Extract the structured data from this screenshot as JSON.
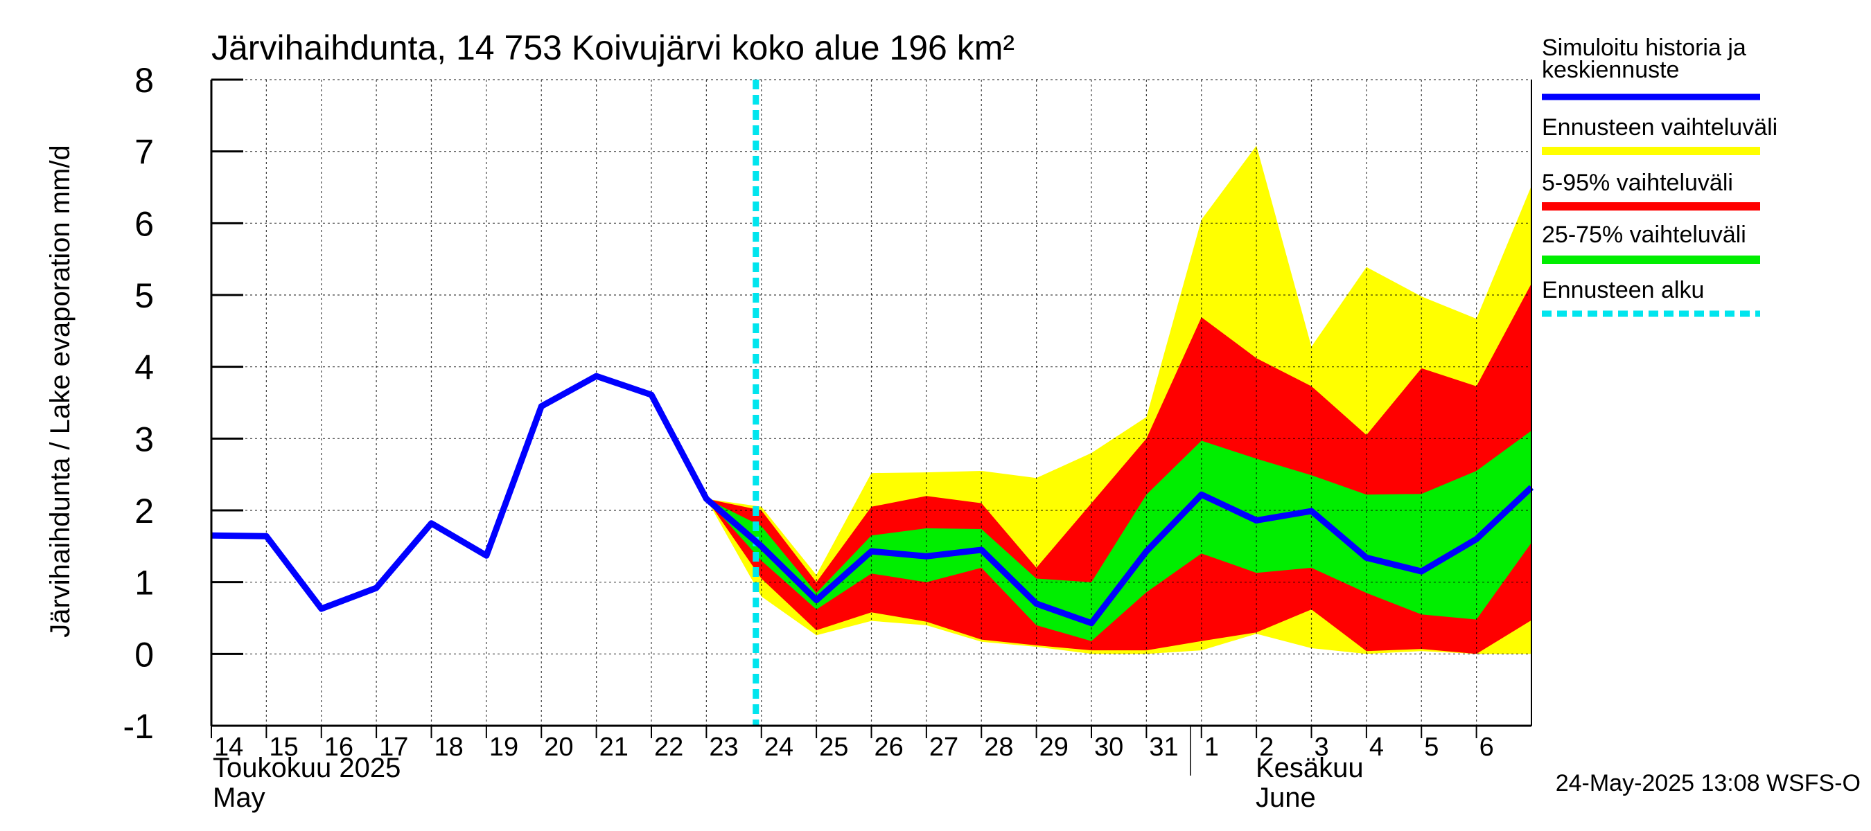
{
  "chart_data": {
    "type": "area",
    "title": "Järvihaihdunta, 14 753 Koivujärvi koko alue 196 km²",
    "ylabel": "Järvihaihdunta / Lake evaporation   mm/d",
    "ylim": [
      -1,
      8
    ],
    "y_ticks": [
      "-1",
      "0",
      "1",
      "2",
      "3",
      "4",
      "5",
      "6",
      "7",
      "8"
    ],
    "x_tick_labels": [
      "14",
      "15",
      "16",
      "17",
      "18",
      "19",
      "20",
      "21",
      "22",
      "23",
      "24",
      "25",
      "26",
      "27",
      "28",
      "29",
      "30",
      "31",
      "1",
      "2",
      "3",
      "4",
      "5",
      "6"
    ],
    "month_labels": [
      {
        "line1": "Toukokuu  2025",
        "line2": "May"
      },
      {
        "line1": "Kesäkuu",
        "line2": "June"
      }
    ],
    "forecast_start": "24",
    "legend": [
      {
        "label": "Simuloitu historia ja keskiennuste",
        "color": "#0000ff",
        "style": "line"
      },
      {
        "label": "Ennusteen vaihteluväli",
        "color": "#ffff00",
        "style": "band"
      },
      {
        "label": "5-95% vaihteluväli",
        "color": "#ff0000",
        "style": "band"
      },
      {
        "label": "25-75% vaihteluväli",
        "color": "#00ee00",
        "style": "band"
      },
      {
        "label": "Ennusteen alku",
        "color": "#00e5ee",
        "style": "dashed"
      }
    ],
    "series": {
      "history": {
        "x": [
          14,
          15,
          16,
          17,
          18,
          19,
          20,
          21,
          22,
          23,
          24,
          25,
          26,
          27,
          28,
          29,
          30,
          31,
          32,
          33,
          34,
          35,
          36,
          37,
          38
        ],
        "y": [
          1.65,
          1.64,
          0.63,
          0.92,
          1.82,
          1.37,
          3.45,
          3.87,
          3.61,
          2.16,
          1.5,
          0.75,
          1.43,
          1.36,
          1.45,
          0.7,
          0.43,
          1.43,
          2.22,
          1.86,
          1.99,
          1.34,
          1.15,
          1.6,
          2.32
        ]
      },
      "band_full": {
        "x": [
          23,
          24,
          25,
          26,
          27,
          28,
          29,
          30,
          31,
          32,
          33,
          34,
          35,
          36,
          37,
          38
        ],
        "upper": [
          2.16,
          2.05,
          1.1,
          2.52,
          2.53,
          2.55,
          2.45,
          2.8,
          3.3,
          6.05,
          7.08,
          4.28,
          5.39,
          4.98,
          4.67,
          6.52
        ],
        "lower": [
          2.16,
          0.8,
          0.26,
          0.46,
          0.4,
          0.17,
          0.1,
          0.0,
          0.0,
          0.05,
          0.28,
          0.08,
          0.0,
          0.04,
          0.0,
          0.0
        ]
      },
      "band_5_95": {
        "x": [
          23,
          24,
          25,
          26,
          27,
          28,
          29,
          30,
          31,
          32,
          33,
          34,
          35,
          36,
          37,
          38
        ],
        "upper": [
          2.16,
          2.0,
          1.0,
          2.05,
          2.2,
          2.1,
          1.2,
          2.1,
          3.0,
          4.69,
          4.12,
          3.73,
          3.05,
          3.98,
          3.73,
          5.16
        ],
        "lower": [
          2.16,
          1.05,
          0.33,
          0.58,
          0.45,
          0.2,
          0.12,
          0.05,
          0.05,
          0.18,
          0.3,
          0.62,
          0.04,
          0.07,
          0.0,
          0.47
        ]
      },
      "band_25_75": {
        "x": [
          23,
          24,
          25,
          26,
          27,
          28,
          29,
          30,
          31,
          32,
          33,
          34,
          35,
          36,
          37,
          38
        ],
        "upper": [
          2.16,
          1.78,
          0.85,
          1.65,
          1.75,
          1.74,
          1.05,
          1.0,
          2.22,
          2.97,
          2.72,
          2.49,
          2.22,
          2.23,
          2.55,
          3.11
        ],
        "lower": [
          2.16,
          1.3,
          0.62,
          1.12,
          1.0,
          1.2,
          0.4,
          0.18,
          0.86,
          1.4,
          1.13,
          1.2,
          0.85,
          0.55,
          0.48,
          1.55
        ]
      }
    }
  },
  "timestamp": "24-May-2025 13:08 WSFS-O"
}
